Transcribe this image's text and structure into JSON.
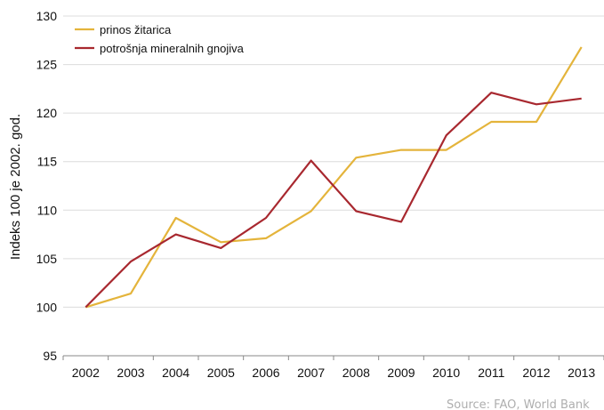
{
  "chart_data": {
    "type": "line",
    "title": "",
    "xlabel": "",
    "ylabel": "Indeks 100 je 2002. god.",
    "ylim": [
      95,
      130
    ],
    "yticks": [
      95,
      100,
      105,
      110,
      115,
      120,
      125,
      130
    ],
    "categories": [
      "2002",
      "2003",
      "2004",
      "2005",
      "2006",
      "2007",
      "2008",
      "2009",
      "2010",
      "2011",
      "2012",
      "2013"
    ],
    "grid": "horizontal",
    "legend_position": "top-left",
    "series": [
      {
        "name": "prinos žitarica",
        "color": "#e4b43b",
        "values": [
          100,
          101.4,
          109.2,
          106.7,
          107.1,
          109.9,
          115.4,
          116.2,
          116.2,
          119.1,
          119.1,
          126.8
        ]
      },
      {
        "name": "potrošnja mineralnih gnojiva",
        "color": "#a8282f",
        "values": [
          100,
          104.7,
          107.5,
          106.1,
          109.2,
          115.1,
          109.9,
          108.8,
          117.7,
          122.1,
          120.9,
          121.5
        ]
      }
    ],
    "source": "Source: FAO, World Bank"
  },
  "colors": {
    "grid": "#dcdcdc",
    "axis": "#888888"
  }
}
